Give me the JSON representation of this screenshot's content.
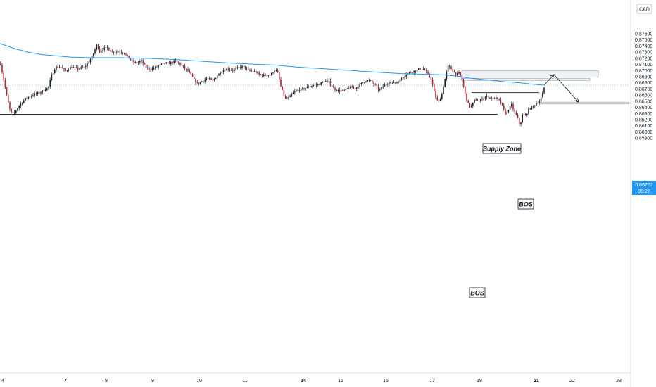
{
  "chart_data": {
    "type": "candlestick",
    "currency": "CAD",
    "current_price": "0.86762",
    "countdown": "08:27",
    "ylim": [
      0.8585,
      0.8765
    ],
    "y_ticks": [
      "0.87600",
      "0.87500",
      "0.87400",
      "0.87300",
      "0.87200",
      "0.87100",
      "0.87000",
      "0.86900",
      "0.86800",
      "0.86700",
      "0.86600",
      "0.86500",
      "0.86400",
      "0.86300",
      "0.86200",
      "0.86100",
      "0.86000",
      "0.85900"
    ],
    "x_ticks": [
      {
        "label": "4",
        "bold": false,
        "x": 0
      },
      {
        "label": "7",
        "bold": true,
        "x": 89
      },
      {
        "label": "8",
        "bold": false,
        "x": 147
      },
      {
        "label": "9",
        "bold": false,
        "x": 213
      },
      {
        "label": "10",
        "bold": false,
        "x": 279
      },
      {
        "label": "11",
        "bold": false,
        "x": 344
      },
      {
        "label": "14",
        "bold": true,
        "x": 427
      },
      {
        "label": "15",
        "bold": false,
        "x": 480
      },
      {
        "label": "16",
        "bold": false,
        "x": 544
      },
      {
        "label": "17",
        "bold": false,
        "x": 610
      },
      {
        "label": "18",
        "bold": false,
        "x": 677
      },
      {
        "label": "21",
        "bold": true,
        "x": 758
      },
      {
        "label": "22",
        "bold": false,
        "x": 809
      },
      {
        "label": "23",
        "bold": false,
        "x": 875
      }
    ],
    "price_path": [
      [
        0,
        0.8711
      ],
      [
        6,
        0.8676
      ],
      [
        10,
        0.8652
      ],
      [
        14,
        0.8633
      ],
      [
        19,
        0.8629
      ],
      [
        25,
        0.8641
      ],
      [
        35,
        0.8654
      ],
      [
        45,
        0.866
      ],
      [
        55,
        0.8664
      ],
      [
        62,
        0.8668
      ],
      [
        68,
        0.8673
      ],
      [
        72,
        0.869
      ],
      [
        78,
        0.8706
      ],
      [
        85,
        0.8706
      ],
      [
        92,
        0.8699
      ],
      [
        100,
        0.8706
      ],
      [
        110,
        0.8703
      ],
      [
        120,
        0.8706
      ],
      [
        130,
        0.8722
      ],
      [
        137,
        0.8743
      ],
      [
        141,
        0.873
      ],
      [
        146,
        0.8736
      ],
      [
        152,
        0.8737
      ],
      [
        158,
        0.873
      ],
      [
        166,
        0.8731
      ],
      [
        174,
        0.873
      ],
      [
        180,
        0.8723
      ],
      [
        186,
        0.8716
      ],
      [
        193,
        0.8712
      ],
      [
        200,
        0.8716
      ],
      [
        206,
        0.8706
      ],
      [
        212,
        0.8702
      ],
      [
        218,
        0.8704
      ],
      [
        225,
        0.8708
      ],
      [
        232,
        0.8712
      ],
      [
        240,
        0.8712
      ],
      [
        248,
        0.8716
      ],
      [
        256,
        0.871
      ],
      [
        262,
        0.8703
      ],
      [
        268,
        0.8698
      ],
      [
        275,
        0.8685
      ],
      [
        280,
        0.8678
      ],
      [
        287,
        0.8683
      ],
      [
        294,
        0.8688
      ],
      [
        301,
        0.8683
      ],
      [
        308,
        0.8692
      ],
      [
        316,
        0.8701
      ],
      [
        324,
        0.8703
      ],
      [
        331,
        0.87
      ],
      [
        338,
        0.8705
      ],
      [
        345,
        0.8707
      ],
      [
        352,
        0.87
      ],
      [
        360,
        0.8699
      ],
      [
        368,
        0.8693
      ],
      [
        376,
        0.8692
      ],
      [
        384,
        0.8693
      ],
      [
        390,
        0.8702
      ],
      [
        394,
        0.8695
      ],
      [
        398,
        0.8675
      ],
      [
        404,
        0.8654
      ],
      [
        410,
        0.8656
      ],
      [
        416,
        0.8664
      ],
      [
        422,
        0.8668
      ],
      [
        430,
        0.867
      ],
      [
        438,
        0.8674
      ],
      [
        444,
        0.8676
      ],
      [
        452,
        0.8677
      ],
      [
        460,
        0.8683
      ],
      [
        466,
        0.8682
      ],
      [
        473,
        0.8671
      ],
      [
        480,
        0.8667
      ],
      [
        488,
        0.8667
      ],
      [
        496,
        0.8673
      ],
      [
        504,
        0.8671
      ],
      [
        510,
        0.8676
      ],
      [
        518,
        0.8684
      ],
      [
        526,
        0.8683
      ],
      [
        532,
        0.8676
      ],
      [
        538,
        0.8668
      ],
      [
        545,
        0.8676
      ],
      [
        552,
        0.8681
      ],
      [
        560,
        0.868
      ],
      [
        566,
        0.8683
      ],
      [
        572,
        0.869
      ],
      [
        578,
        0.8695
      ],
      [
        584,
        0.8698
      ],
      [
        590,
        0.87
      ],
      [
        596,
        0.8703
      ],
      [
        602,
        0.8702
      ],
      [
        607,
        0.8693
      ],
      [
        612,
        0.8686
      ],
      [
        617,
        0.866
      ],
      [
        622,
        0.8647
      ],
      [
        627,
        0.8662
      ],
      [
        632,
        0.869
      ],
      [
        636,
        0.8708
      ],
      [
        640,
        0.8703
      ],
      [
        644,
        0.8698
      ],
      [
        648,
        0.8693
      ],
      [
        652,
        0.8696
      ],
      [
        656,
        0.8683
      ],
      [
        660,
        0.8662
      ],
      [
        664,
        0.8646
      ],
      [
        668,
        0.864
      ],
      [
        674,
        0.8653
      ],
      [
        680,
        0.865
      ],
      [
        686,
        0.8656
      ],
      [
        692,
        0.8658
      ],
      [
        698,
        0.8654
      ],
      [
        704,
        0.8655
      ],
      [
        710,
        0.865
      ],
      [
        714,
        0.8638
      ],
      [
        718,
        0.8628
      ],
      [
        722,
        0.8638
      ],
      [
        726,
        0.8644
      ],
      [
        730,
        0.8632
      ],
      [
        734,
        0.8624
      ],
      [
        738,
        0.861
      ],
      [
        742,
        0.863
      ],
      [
        746,
        0.8626
      ],
      [
        750,
        0.8636
      ],
      [
        754,
        0.864
      ],
      [
        758,
        0.8643
      ],
      [
        762,
        0.8648
      ],
      [
        766,
        0.865
      ],
      [
        770,
        0.8662
      ],
      [
        773,
        0.86762
      ]
    ],
    "moving_average": [
      [
        0,
        0.8744
      ],
      [
        20,
        0.8736
      ],
      [
        40,
        0.873
      ],
      [
        60,
        0.8726
      ],
      [
        80,
        0.8724
      ],
      [
        100,
        0.8722
      ],
      [
        130,
        0.8721
      ],
      [
        170,
        0.8721
      ],
      [
        210,
        0.872
      ],
      [
        250,
        0.8718
      ],
      [
        290,
        0.8715
      ],
      [
        330,
        0.8712
      ],
      [
        370,
        0.871
      ],
      [
        390,
        0.8709
      ],
      [
        420,
        0.8706
      ],
      [
        460,
        0.8703
      ],
      [
        500,
        0.87
      ],
      [
        540,
        0.8697
      ],
      [
        570,
        0.8695
      ],
      [
        600,
        0.8694
      ],
      [
        630,
        0.8693
      ],
      [
        650,
        0.8691
      ],
      [
        665,
        0.8688
      ],
      [
        690,
        0.8685
      ],
      [
        715,
        0.8682
      ],
      [
        740,
        0.868
      ],
      [
        755,
        0.8678
      ],
      [
        773,
        0.86762
      ]
    ],
    "annotations": {
      "supply_zone_label": "Supply Zone",
      "bos_upper_label": "BOS",
      "bos_lower_label": "BOS"
    },
    "zones": [
      {
        "name": "supply-zone",
        "x1": 656,
        "x2": 850,
        "y1": 0.86995,
        "y2": 0.86895
      },
      {
        "name": "supply-zone-lower",
        "x1": 656,
        "x2": 838,
        "y1": 0.86875,
        "y2": 0.8684
      },
      {
        "name": "target-zone",
        "x1": 768,
        "x2": 893,
        "y1": 0.86485,
        "y2": 0.86455
      }
    ],
    "lines": [
      {
        "name": "bos-line-upper",
        "x1": 670,
        "x2": 766,
        "y": 0.8664
      },
      {
        "name": "bos-line-lower",
        "x1": 0,
        "x2": 707,
        "y": 0.86287
      },
      {
        "name": "current-price-line",
        "x1": 0,
        "x2": 893,
        "y": 0.86762,
        "dashed": true
      }
    ],
    "projection": [
      [
        773,
        0.86762
      ],
      [
        787,
        0.86935
      ],
      [
        822,
        0.86485
      ]
    ],
    "colors": {
      "up": "#089981",
      "down": "#f23645",
      "wick": "#131722",
      "body_up": "#1e222d",
      "body_down": "#b22833",
      "ma": "#2196f3",
      "zone_fill": "#e3e6ed",
      "zone_stroke": "#9598a1",
      "price_label_bg": "#2196f3"
    }
  }
}
